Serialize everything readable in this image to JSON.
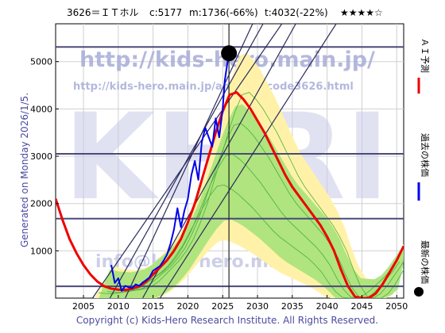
{
  "header": {
    "stock": "3626＝ＩＴホル",
    "c_label": "c:5177",
    "m_label": "m:1736(-66%)",
    "t_label": "t:4032(-22%)",
    "stars": "★★★★☆"
  },
  "side_label": "Generated on Monday 2026/1/5.",
  "copyright": "Copyright (c) Kids-Hero Research Institute. All Rights Reserved.",
  "watermarks": {
    "big": "KHRI",
    "url": "http://kids-hero.main.jp/",
    "url2": "http://kids-hero.main.jp/analysis/code3626.html",
    "info": "info@kids-hero.main.jp"
  },
  "legend": [
    {
      "label": "ＡＩ予測",
      "color": "#ee0000",
      "marker": "line"
    },
    {
      "label": "過去の株価",
      "color": "#0000ee",
      "marker": "line"
    },
    {
      "label": "最新の株価",
      "color": "#000000",
      "marker": "dot"
    }
  ],
  "colors": {
    "ai_prediction": "#ee0000",
    "past_price": "#0000ee",
    "latest_price": "#000000",
    "band_outer": "#fff2a8",
    "band_inner": "#a6e27a",
    "band_lines": "#4cae3e",
    "hline": "#4a4a7a",
    "trendline": "#2a2a5a",
    "grid": "#d0d0d0"
  },
  "chart_data": {
    "type": "line",
    "xlim": [
      2001,
      2051
    ],
    "ylim": [
      0,
      5800
    ],
    "x_ticks": [
      2005,
      2010,
      2015,
      2020,
      2025,
      2030,
      2035,
      2040,
      2045,
      2050
    ],
    "y_ticks": [
      1000,
      2000,
      3000,
      4000,
      5000
    ],
    "grid": true,
    "latest": {
      "x": 2025.9,
      "y": 5177
    },
    "current_year_marker": 2025.9,
    "horizontal_levels": [
      5310,
      3050,
      1680,
      250
    ],
    "trendlines": [
      {
        "x": [
          2006.3,
          2033.5
        ],
        "y": [
          0,
          5800
        ]
      },
      {
        "x": [
          2008.8,
          2030.8
        ],
        "y": [
          0,
          5800
        ]
      },
      {
        "x": [
          2011.0,
          2029.3
        ],
        "y": [
          0,
          5800
        ]
      },
      {
        "x": [
          2013.5,
          2035.5
        ],
        "y": [
          0,
          5800
        ]
      },
      {
        "x": [
          2016.0,
          2041.3
        ],
        "y": [
          0,
          5800
        ]
      }
    ],
    "series": [
      {
        "name": "ＡＩ予測",
        "x": [
          2001,
          2002,
          2003,
          2004,
          2005,
          2006,
          2007,
          2008,
          2009,
          2010,
          2011,
          2012,
          2013,
          2014,
          2015,
          2016,
          2017,
          2018,
          2019,
          2020,
          2021,
          2022,
          2023,
          2024,
          2025,
          2026,
          2027,
          2028,
          2029,
          2030,
          2031,
          2032,
          2033,
          2034,
          2035,
          2036,
          2037,
          2038,
          2039,
          2040,
          2041,
          2042,
          2043,
          2044,
          2045,
          2046,
          2047,
          2048,
          2049,
          2050,
          2051
        ],
        "y": [
          2100,
          1650,
          1250,
          950,
          700,
          500,
          350,
          250,
          200,
          180,
          170,
          200,
          250,
          350,
          500,
          650,
          800,
          1000,
          1250,
          1600,
          2000,
          2500,
          3000,
          3500,
          3950,
          4300,
          4350,
          4200,
          4000,
          3750,
          3500,
          3200,
          2900,
          2600,
          2350,
          2150,
          1950,
          1750,
          1550,
          1300,
          1000,
          600,
          250,
          30,
          0,
          0,
          100,
          300,
          550,
          800,
          1100
        ]
      },
      {
        "name": "過去の株価",
        "x": [
          2009.0,
          2009.5,
          2010.0,
          2010.5,
          2011.0,
          2011.5,
          2012.0,
          2012.5,
          2013.0,
          2013.5,
          2014.0,
          2014.5,
          2015.0,
          2015.5,
          2016.0,
          2016.5,
          2017.0,
          2017.5,
          2018.0,
          2018.5,
          2019.0,
          2019.5,
          2020.0,
          2020.5,
          2021.0,
          2021.5,
          2022.0,
          2022.5,
          2023.0,
          2023.5,
          2024.0,
          2024.5,
          2025.0,
          2025.3,
          2025.6,
          2025.9
        ],
        "y": [
          700,
          320,
          420,
          150,
          260,
          230,
          210,
          290,
          260,
          330,
          380,
          440,
          580,
          630,
          680,
          790,
          920,
          1150,
          1450,
          1900,
          1500,
          1850,
          2100,
          2600,
          2900,
          2500,
          3300,
          3600,
          3400,
          3200,
          3800,
          3400,
          4000,
          4600,
          4900,
          5177
        ]
      }
    ]
  }
}
